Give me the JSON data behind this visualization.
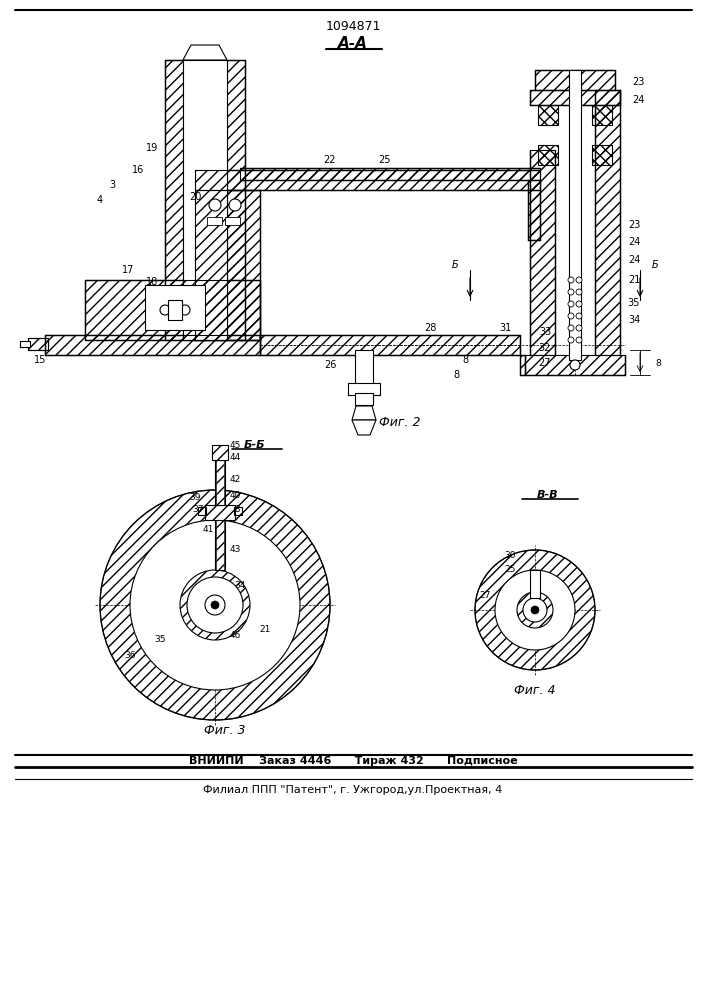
{
  "patent_number": "1094871",
  "section_label_aa": "А-А",
  "section_label_bb": "Б-Б",
  "section_label_vv": "В-В",
  "fig2_label": "Фиг. 2",
  "fig3_label": "Фиг. 3",
  "fig4_label": "Фиг. 4",
  "footer_line1": "ВНИИПИ    Заказ 4446      Тираж 432      Подписное",
  "footer_line2": "Филиал ППП \"Патент\", г. Ужгород,ул.Проектная, 4",
  "bg_color": "#ffffff",
  "line_color": "#000000"
}
